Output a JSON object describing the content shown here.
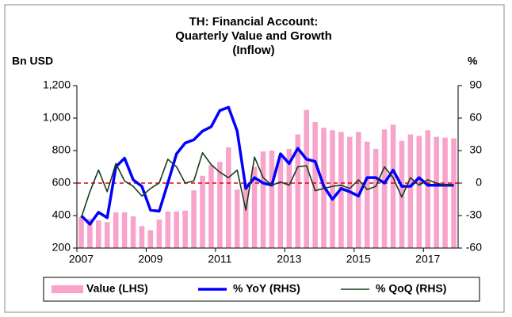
{
  "chart_data": {
    "type": "bar-line",
    "title": [
      "TH: Financial Account:",
      "Quarterly Value and Growth",
      "(Inflow)"
    ],
    "y_label": "Bn USD",
    "y2_label": "%",
    "categories": [
      "2007",
      null,
      null,
      null,
      null,
      null,
      null,
      null,
      "2009",
      null,
      null,
      null,
      null,
      null,
      null,
      null,
      "2011",
      null,
      null,
      null,
      null,
      null,
      null,
      null,
      "2013",
      null,
      null,
      null,
      null,
      null,
      null,
      null,
      "2015",
      null,
      null,
      null,
      null,
      null,
      null,
      null,
      "2017",
      null,
      null,
      null
    ],
    "series": [
      {
        "name": "Value (LHS)",
        "kind": "bar",
        "color": "#f7a3cc",
        "axis": "y",
        "values": [
          390,
          380,
          370,
          360,
          420,
          420,
          395,
          335,
          310,
          375,
          425,
          425,
          430,
          555,
          645,
          710,
          730,
          820,
          560,
          600,
          700,
          795,
          800,
          770,
          810,
          900,
          1050,
          975,
          940,
          925,
          915,
          885,
          915,
          855,
          810,
          930,
          960,
          860,
          900,
          890,
          925,
          885,
          880,
          875
        ]
      },
      {
        "name": "% YoY (RHS)",
        "kind": "line",
        "color": "#0000ff",
        "axis": "y2",
        "values": [
          -30,
          -38,
          -27,
          -32,
          15,
          23,
          3,
          -3,
          -25,
          -26,
          0,
          27,
          37,
          40,
          48,
          52,
          67,
          70,
          48,
          -5,
          5,
          0,
          -2,
          27,
          18,
          32,
          22,
          20,
          -3,
          -15,
          -5,
          -8,
          -12,
          5,
          5,
          0,
          12,
          -3,
          -3,
          5,
          -2,
          -2,
          -2,
          -2
        ]
      },
      {
        "name": "% QoQ (RHS)",
        "kind": "line",
        "color": "#1a3d1a",
        "axis": "y2",
        "values": [
          -32,
          -8,
          12,
          -8,
          18,
          2,
          -3,
          -12,
          -5,
          0,
          22,
          15,
          0,
          2,
          28,
          17,
          10,
          5,
          12,
          -25,
          24,
          5,
          -2,
          1,
          -2,
          15,
          16,
          -7,
          -5,
          -3,
          -2,
          -5,
          3,
          -6,
          -3,
          15,
          5,
          -13,
          5,
          -2,
          3,
          0,
          -2,
          -1
        ]
      }
    ],
    "ylim": [
      200,
      1200
    ],
    "yticks": [
      200,
      400,
      600,
      800,
      {
        "value": 1000,
        "label": "1,000"
      },
      {
        "value": 1200,
        "label": "1,200"
      }
    ],
    "y2lim": [
      -60,
      90
    ],
    "y2ticks": [
      -60,
      -30,
      0,
      30,
      60,
      90
    ],
    "reference_line": {
      "axis": "y2",
      "value": 0,
      "color": "#e00000"
    },
    "legend": "bottom"
  }
}
